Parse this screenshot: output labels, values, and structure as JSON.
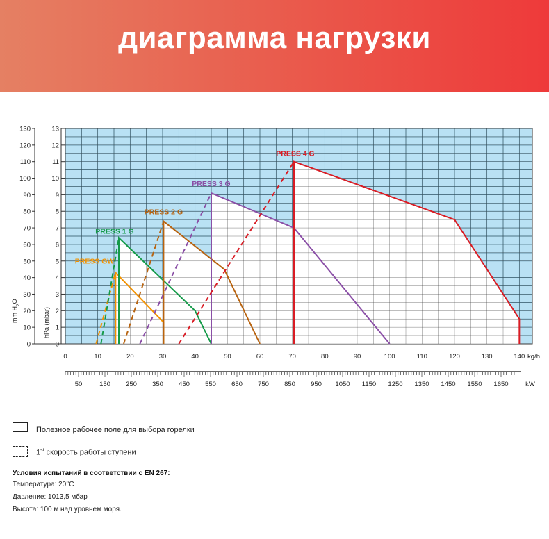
{
  "header": {
    "title": "диаграмма нагрузки"
  },
  "legend": {
    "solid_label": "Полезное рабочее поле для выбора горелки",
    "dashed_label_sup": "st",
    "dashed_label_num": "1",
    "dashed_label_rest": " скорость работы ступени"
  },
  "conditions": {
    "title": "Условия испытаний в соответствии с EN 267:",
    "temperature": "Температура: 20°C",
    "pressure": "Давление: 1013,5 мбар",
    "altitude": "Высота: 100 м над уровнем моря."
  },
  "chart_data": {
    "type": "line",
    "x_unit": "kg/h",
    "x_ticks": [
      0,
      10,
      20,
      30,
      40,
      50,
      60,
      70,
      80,
      90,
      100,
      110,
      120,
      130,
      140
    ],
    "xlim": [
      0,
      144
    ],
    "kw_unit": "kW",
    "kw_ticks": [
      "50",
      "150",
      "250",
      "350",
      "450",
      "550",
      "650",
      "750",
      "850",
      "950",
      "1050",
      "1150",
      "1250",
      "1350",
      "1450",
      "1550",
      "1650"
    ],
    "y_left_label": "mm H2O",
    "y_left_ticks": [
      0,
      10,
      20,
      30,
      40,
      50,
      60,
      70,
      80,
      90,
      100,
      110,
      120,
      130
    ],
    "y_right_label": "hPa (mbar)",
    "y_right_ticks": [
      0,
      1,
      2,
      3,
      4,
      5,
      6,
      7,
      8,
      9,
      10,
      11,
      12,
      13
    ],
    "ylim": [
      0,
      13
    ],
    "grid": true,
    "background": "#b9e1f4",
    "series": [
      {
        "name": "PRESS GW",
        "color": "#f39200",
        "solid": [
          [
            15.5,
            0
          ],
          [
            15.5,
            4.3
          ],
          [
            30.3,
            1.3
          ],
          [
            30.3,
            0
          ]
        ],
        "dashed": [
          [
            9.5,
            0
          ],
          [
            15.5,
            4.3
          ]
        ]
      },
      {
        "name": "PRESS 1 G",
        "color": "#159a49",
        "solid": [
          [
            16.5,
            0
          ],
          [
            16.5,
            6.4
          ],
          [
            40,
            2
          ],
          [
            45,
            0
          ]
        ],
        "dashed": [
          [
            11,
            0
          ],
          [
            16.5,
            6.4
          ]
        ]
      },
      {
        "name": "PRESS 2 G",
        "color": "#b8630f",
        "solid": [
          [
            30.3,
            0
          ],
          [
            30.3,
            7.4
          ],
          [
            49,
            4.5
          ],
          [
            60,
            0
          ]
        ],
        "dashed": [
          [
            18,
            0
          ],
          [
            30.3,
            7.4
          ]
        ]
      },
      {
        "name": "PRESS 3 G",
        "color": "#8a4fa6",
        "solid": [
          [
            45,
            0
          ],
          [
            45,
            9.1
          ],
          [
            70.5,
            7
          ],
          [
            100,
            0
          ]
        ],
        "dashed": [
          [
            23,
            0
          ],
          [
            45,
            9.1
          ]
        ]
      },
      {
        "name": "PRESS 4 G",
        "color": "#d91c24",
        "solid": [
          [
            70.5,
            0
          ],
          [
            70.5,
            11
          ],
          [
            120,
            7.5
          ],
          [
            140,
            1.5
          ],
          [
            140,
            0
          ]
        ],
        "dashed": [
          [
            35,
            0
          ],
          [
            70.5,
            11
          ]
        ]
      }
    ]
  }
}
